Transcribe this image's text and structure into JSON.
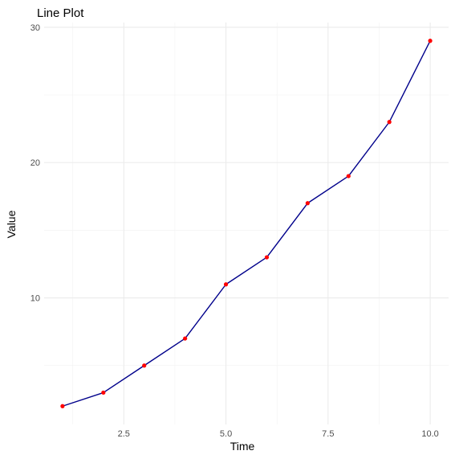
{
  "chart_data": {
    "type": "line",
    "title": "Line Plot",
    "xlabel": "Time",
    "ylabel": "Value",
    "x": [
      1,
      2,
      3,
      4,
      5,
      6,
      7,
      8,
      9,
      10
    ],
    "series": [
      {
        "values": [
          2,
          3,
          5,
          7,
          11,
          13,
          17,
          19,
          23,
          29
        ]
      }
    ],
    "xlim": [
      0.55,
      10.45
    ],
    "ylim": [
      0.65,
      30.35
    ],
    "x_major_ticks": [
      2.5,
      5.0,
      7.5,
      10.0
    ],
    "x_tick_labels": [
      "2.5",
      "5.0",
      "7.5",
      "10.0"
    ],
    "x_minor_ticks": [
      1.25,
      3.75,
      6.25,
      8.75
    ],
    "y_major_ticks": [
      10,
      20,
      30
    ],
    "y_tick_labels": [
      "10",
      "20",
      "30"
    ],
    "y_minor_ticks": [
      5,
      15,
      25
    ],
    "grid": true,
    "legend": "none",
    "colors": {
      "line": "#00008B",
      "points": "#FF0000"
    }
  }
}
